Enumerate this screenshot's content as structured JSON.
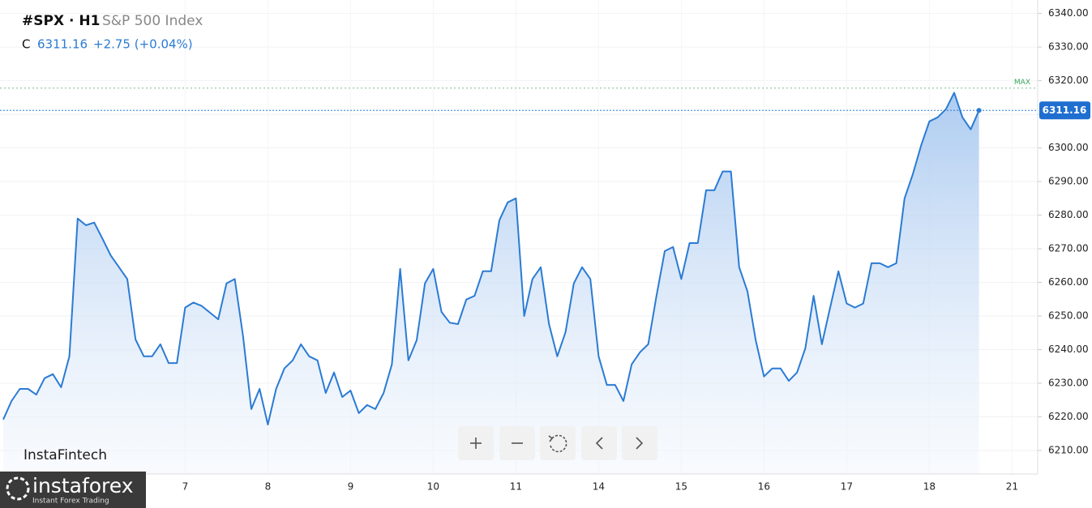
{
  "chart_data": {
    "type": "area",
    "title": "#SPX · H1",
    "subtitle": "S&P 500 Index",
    "close_label": "C",
    "change": "+2.75 (+0.04%)",
    "color": "#2a7bd4",
    "grid": true,
    "categories": [
      null,
      null,
      null,
      null,
      null,
      null,
      null,
      null,
      null,
      null,
      null,
      null,
      null,
      null,
      null,
      null,
      null,
      null,
      null,
      null,
      null,
      null,
      "7",
      null,
      null,
      null,
      null,
      null,
      null,
      null,
      null,
      null,
      "8",
      null,
      null,
      null,
      null,
      null,
      null,
      null,
      null,
      null,
      "9",
      null,
      null,
      null,
      null,
      null,
      null,
      null,
      null,
      null,
      "10",
      null,
      null,
      null,
      null,
      null,
      null,
      null,
      null,
      null,
      "11",
      null,
      null,
      null,
      null,
      null,
      null,
      null,
      null,
      null,
      "14",
      null,
      null,
      null,
      null,
      null,
      null,
      null,
      null,
      null,
      "15",
      null,
      null,
      null,
      null,
      null,
      null,
      null,
      null,
      null,
      "16",
      null,
      null,
      null,
      null,
      null,
      null,
      null,
      null,
      null,
      "17",
      null,
      null,
      null,
      null,
      null,
      null,
      null,
      null,
      null,
      "18",
      null,
      null,
      null,
      null,
      null,
      null,
      null,
      null,
      null,
      "21"
    ],
    "values": [
      6219.2,
      6224.7,
      6228.3,
      6228.3,
      6226.6,
      6231.5,
      6232.7,
      6228.8,
      6238,
      6279,
      6277,
      6277.8,
      6273,
      6268,
      6264.5,
      6261,
      6243,
      6238,
      6238,
      6241.6,
      6236,
      6236,
      6252.5,
      6254,
      6253,
      6251,
      6249,
      6259.7,
      6261,
      6244,
      6222.3,
      6228.3,
      6217.7,
      6228.3,
      6234.4,
      6236.8,
      6241.6,
      6238,
      6236.8,
      6227.1,
      6233.2,
      6225.9,
      6227.8,
      6221.1,
      6223.5,
      6222.3,
      6227.1,
      6235.6,
      6264,
      6236.8,
      6242.8,
      6259.7,
      6264,
      6251.2,
      6248,
      6247.6,
      6254.9,
      6256,
      6263.3,
      6263.3,
      6278.5,
      6283.8,
      6285,
      6250,
      6261,
      6264.5,
      6247.6,
      6238,
      6245.2,
      6259.7,
      6264.5,
      6261,
      6238,
      6229.5,
      6229.5,
      6224.7,
      6235.6,
      6239.2,
      6241.6,
      6256,
      6269.3,
      6270.5,
      6261,
      6271.7,
      6271.7,
      6287.4,
      6287.4,
      6293,
      6293,
      6264.5,
      6257.3,
      6242.8,
      6232,
      6234.4,
      6234.4,
      6230.7,
      6233.2,
      6240.4,
      6256,
      6241.6,
      6252.5,
      6263.3,
      6253.7,
      6252.5,
      6253.7,
      6265.7,
      6265.7,
      6264.5,
      6265.7,
      6285,
      6292.2,
      6300.7,
      6307.9,
      6309.1,
      6311.5,
      6316.4,
      6309.1,
      6305.5,
      6311.16,
      null,
      null,
      null,
      null
    ],
    "ylim": [
      6203,
      6344
    ],
    "yticks": [
      {
        "value": 6210,
        "label": "6210.00"
      },
      {
        "value": 6220,
        "label": "6220.00"
      },
      {
        "value": 6230,
        "label": "6230.00"
      },
      {
        "value": 6240,
        "label": "6240.00"
      },
      {
        "value": 6250,
        "label": "6250.00"
      },
      {
        "value": 6260,
        "label": "6260.00"
      },
      {
        "value": 6270,
        "label": "6270.00"
      },
      {
        "value": 6280,
        "label": "6280.00"
      },
      {
        "value": 6290,
        "label": "6290.00"
      },
      {
        "value": 6300,
        "label": "6300.00"
      },
      {
        "value": 6310,
        "label": "6310.00"
      },
      {
        "value": 6320,
        "label": "6320.00"
      },
      {
        "value": 6330,
        "label": "6330.00"
      },
      {
        "value": 6340,
        "label": "6340.00"
      }
    ],
    "max_line": {
      "value": 6317.8,
      "label": "MAX",
      "color": "#3aa55c"
    },
    "watermark": "InstaFintech"
  },
  "branding": {
    "name": "instaforex",
    "tagline": "Instant Forex Trading"
  }
}
